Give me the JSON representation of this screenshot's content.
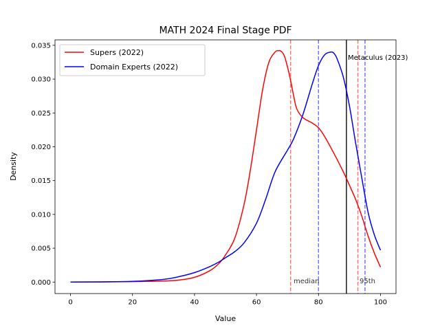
{
  "chart_data": {
    "type": "line",
    "title": "MATH 2024 Final Stage PDF",
    "xlabel": "Value",
    "ylabel": "Density",
    "xlim": [
      -5,
      105
    ],
    "ylim": [
      -0.0017,
      0.0358
    ],
    "xticks": [
      0,
      20,
      40,
      60,
      80,
      100
    ],
    "xtick_labels": [
      "0",
      "20",
      "40",
      "60",
      "80",
      "100"
    ],
    "yticks": [
      0.0,
      0.005,
      0.01,
      0.015,
      0.02,
      0.025,
      0.03,
      0.035
    ],
    "ytick_labels": [
      "0.000",
      "0.005",
      "0.010",
      "0.015",
      "0.020",
      "0.025",
      "0.030",
      "0.035"
    ],
    "legend_position": "top-left",
    "series": [
      {
        "name": "Supers (2022)",
        "color": "#ff0000",
        "x": [
          0,
          10,
          20,
          30,
          35,
          40,
          45,
          48,
          50,
          53,
          56,
          58,
          60,
          62,
          64,
          66,
          67,
          68,
          69,
          70,
          71,
          72,
          73,
          75,
          78,
          80,
          82,
          85,
          88,
          90,
          92,
          94,
          96,
          98,
          100
        ],
        "y": [
          0.0,
          2e-05,
          6e-05,
          0.00015,
          0.0003,
          0.0007,
          0.0017,
          0.0028,
          0.004,
          0.0065,
          0.0115,
          0.0165,
          0.0225,
          0.0285,
          0.0325,
          0.034,
          0.0342,
          0.0341,
          0.0334,
          0.0318,
          0.0298,
          0.0275,
          0.0256,
          0.0243,
          0.0235,
          0.0228,
          0.0215,
          0.019,
          0.0163,
          0.0143,
          0.0122,
          0.0097,
          0.0068,
          0.0043,
          0.0022
        ]
      },
      {
        "name": "Domain Experts (2022)",
        "color": "#0000ff",
        "x": [
          0,
          10,
          20,
          30,
          35,
          40,
          45,
          48,
          50,
          53,
          56,
          60,
          63,
          66,
          70,
          72,
          75,
          78,
          80,
          82,
          84,
          85,
          86,
          88,
          90,
          92,
          94,
          96,
          98,
          100
        ],
        "y": [
          0.0,
          3e-05,
          0.0001,
          0.0004,
          0.0008,
          0.0014,
          0.0023,
          0.003,
          0.0036,
          0.0045,
          0.0058,
          0.0087,
          0.0123,
          0.0163,
          0.0195,
          0.0212,
          0.0248,
          0.0293,
          0.032,
          0.0336,
          0.034,
          0.0338,
          0.033,
          0.0303,
          0.026,
          0.0205,
          0.0153,
          0.0103,
          0.007,
          0.0047
        ]
      }
    ],
    "vertical_lines": [
      {
        "x": 71,
        "color": "#ff0000",
        "style": "dashed",
        "series": "Supers (2022)",
        "stat": "median"
      },
      {
        "x": 92.7,
        "color": "#ff0000",
        "style": "dashed",
        "series": "Supers (2022)",
        "stat": "95th"
      },
      {
        "x": 80,
        "color": "#0000ff",
        "style": "dashed",
        "series": "Domain Experts (2022)",
        "stat": "median"
      },
      {
        "x": 95,
        "color": "#0000ff",
        "style": "dashed",
        "series": "Domain Experts (2022)",
        "stat": "95th"
      },
      {
        "x": 89,
        "color": "#000000",
        "style": "solid",
        "stat": "Metaculus (2023)"
      }
    ],
    "annotations": {
      "median": "median",
      "p95": "95th",
      "metaculus": "Metaculus (2023)"
    }
  }
}
